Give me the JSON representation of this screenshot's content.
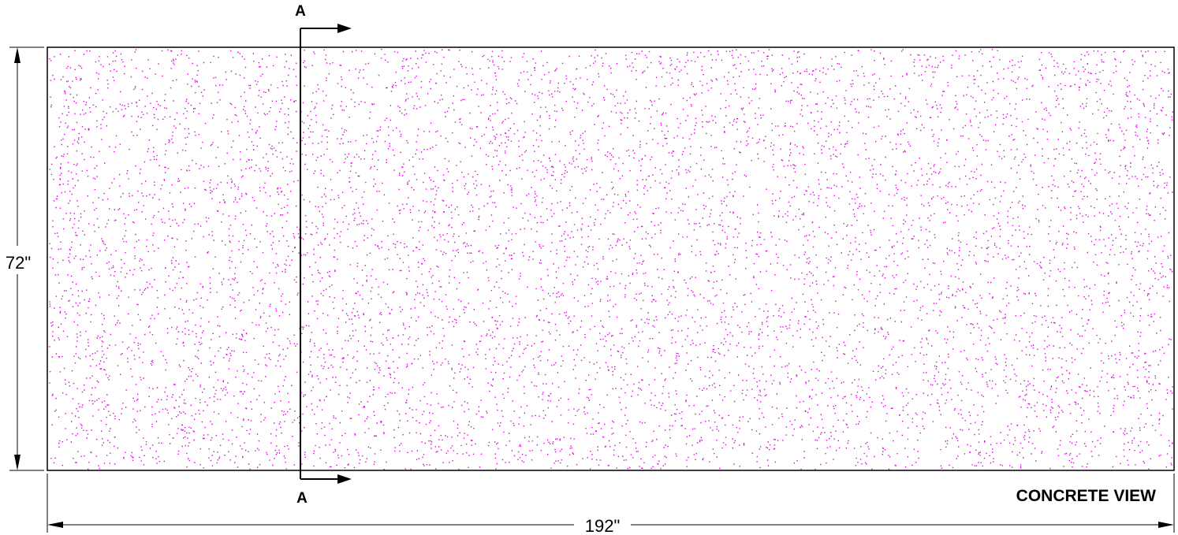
{
  "drawing": {
    "view_title": "CONCRETE VIEW",
    "section_marker_top": "A",
    "section_marker_bottom": "A",
    "dimension_height": "72\"",
    "dimension_width": "192\"",
    "hatch_pattern": "concrete-stipple",
    "colors": {
      "outline": "#000000",
      "hatch": "#e000e0",
      "background": "#ffffff"
    }
  }
}
